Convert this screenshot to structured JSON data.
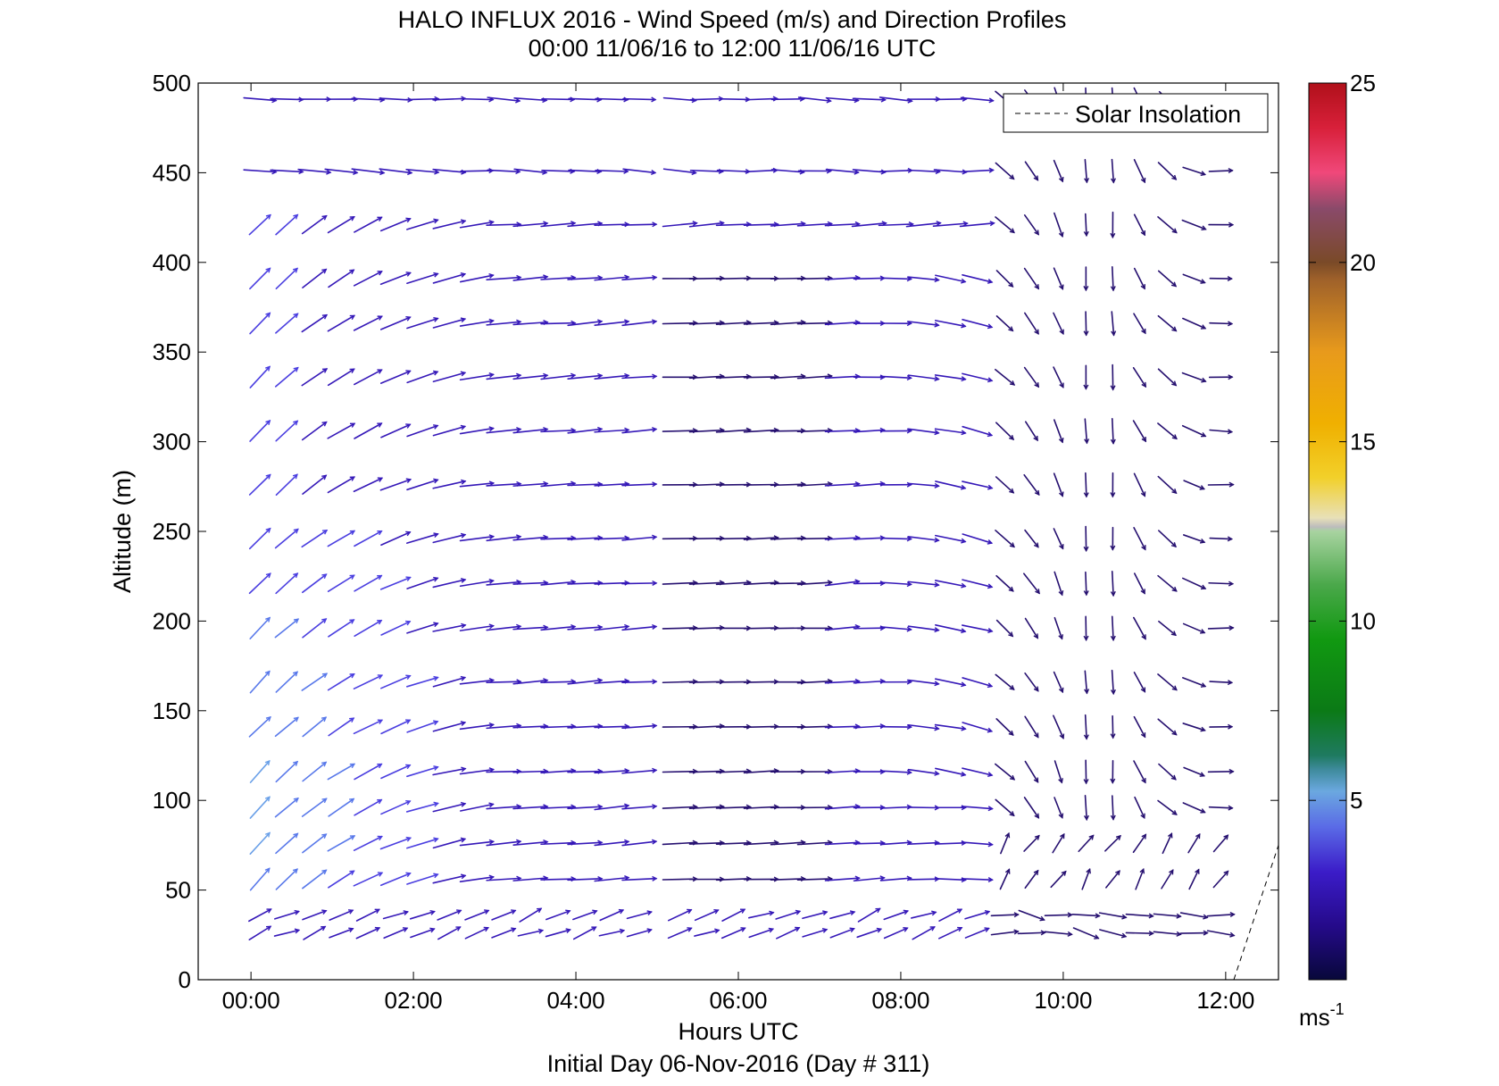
{
  "chart_data": {
    "type": "quiver",
    "title": "HALO INFLUX 2016 - Wind Speed (m/s) and Direction Profiles",
    "subtitle": "00:00 11/06/16 to 12:00 11/06/16  UTC",
    "xlabel": "Hours UTC",
    "xlabel2": "Initial Day 06-Nov-2016 (Day # 311)",
    "ylabel": "Altitude (m)",
    "xlim": [
      -0.65,
      12.65
    ],
    "ylim": [
      0,
      500
    ],
    "x_ticks": [
      0,
      2,
      4,
      6,
      8,
      10,
      12
    ],
    "x_tick_labels": [
      "00:00",
      "02:00",
      "04:00",
      "06:00",
      "08:00",
      "10:00",
      "12:00"
    ],
    "y_ticks": [
      0,
      50,
      100,
      150,
      200,
      250,
      300,
      350,
      400,
      450,
      500
    ],
    "y_tick_labels": [
      "0",
      "50",
      "100",
      "150",
      "200",
      "250",
      "300",
      "350",
      "400",
      "450",
      "500"
    ],
    "legend": {
      "entries": [
        "Solar Insolation"
      ],
      "placement": "top-right",
      "line_style": "dashed"
    },
    "colorbar": {
      "range": [
        0,
        25
      ],
      "ticks": [
        5,
        10,
        15,
        20,
        25
      ],
      "tick_labels": [
        "5",
        "10",
        "15",
        "20",
        "25"
      ],
      "unit_base": "ms",
      "unit_exp": "-1"
    },
    "solar_insolation": {
      "x": [
        12.1,
        12.65
      ],
      "y": [
        0,
        75
      ]
    },
    "times_hours": [
      0.0,
      0.33,
      0.67,
      1.0,
      1.33,
      1.67,
      2.0,
      2.33,
      2.67,
      3.0,
      3.33,
      3.67,
      4.0,
      4.33,
      4.67,
      5.17,
      5.5,
      5.83,
      6.17,
      6.5,
      6.83,
      7.17,
      7.5,
      7.83,
      8.17,
      8.5,
      8.83,
      9.17,
      9.5,
      9.83,
      10.17,
      10.5,
      10.83,
      11.17,
      11.5,
      11.83
    ],
    "altitudes_m": [
      25,
      35,
      55,
      75,
      95,
      115,
      140,
      165,
      195,
      220,
      245,
      275,
      305,
      335,
      365,
      390,
      420,
      450,
      490
    ],
    "direction_regimes": [
      {
        "time_range": [
          "00:00",
          "09:00"
        ],
        "flow": "westerly, near-horizontal"
      },
      {
        "time_range": [
          "09:20",
          "12:00"
        ],
        "flow": "turning to northerly/near-vertical arrows"
      }
    ],
    "speed_range_mps": [
      0.5,
      5.5
    ]
  }
}
